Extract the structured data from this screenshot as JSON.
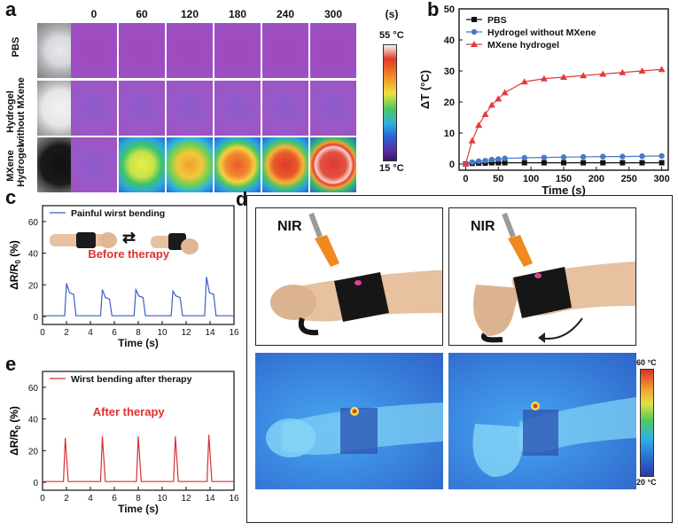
{
  "panels": {
    "a": "a",
    "b": "b",
    "c": "c",
    "d": "d",
    "e": "e"
  },
  "panel_a": {
    "time_unit": "(s)",
    "times": [
      "0",
      "60",
      "120",
      "180",
      "240",
      "300"
    ],
    "rows": [
      "PBS",
      "Hydrogel without MXene",
      "MXene Hydrogel"
    ],
    "colorbar_max": "55 °C",
    "colorbar_min": "15 °C"
  },
  "panel_d": {
    "nir_left": "NIR",
    "nir_right": "NIR",
    "colorbar_max": "60 °C",
    "colorbar_min": "20 °C"
  },
  "colors": {
    "pbs": "#111111",
    "hydrogel": "#4a78c8",
    "mxene": "#e23b3b",
    "blue_trace": "#3a5ec6",
    "red_trace": "#d63030",
    "therapy_text": "#e0302a"
  },
  "chart_data": [
    {
      "panel": "b",
      "type": "line",
      "xlabel": "Time (s)",
      "ylabel": "ΔT (°C)",
      "xlim": [
        -10,
        310
      ],
      "ylim": [
        -2,
        50
      ],
      "xticks": [
        0,
        50,
        100,
        150,
        200,
        250,
        300
      ],
      "yticks": [
        0,
        10,
        20,
        30,
        40,
        50
      ],
      "legend_position": "top-left",
      "series": [
        {
          "name": "PBS",
          "marker": "square",
          "color": "#111111",
          "x": [
            0,
            10,
            20,
            30,
            40,
            50,
            60,
            90,
            120,
            150,
            180,
            210,
            240,
            270,
            300
          ],
          "y": [
            0,
            0.2,
            0.3,
            0.3,
            0.4,
            0.4,
            0.4,
            0.4,
            0.4,
            0.4,
            0.4,
            0.4,
            0.4,
            0.4,
            0.4
          ]
        },
        {
          "name": "Hydrogel without MXene",
          "marker": "circle",
          "color": "#4a78c8",
          "x": [
            0,
            10,
            20,
            30,
            40,
            50,
            60,
            90,
            120,
            150,
            180,
            210,
            240,
            270,
            300
          ],
          "y": [
            0,
            0.6,
            0.9,
            1.1,
            1.4,
            1.6,
            1.8,
            2.0,
            2.1,
            2.2,
            2.3,
            2.4,
            2.4,
            2.5,
            2.6
          ]
        },
        {
          "name": "MXene hydrogel",
          "marker": "triangle",
          "color": "#e23b3b",
          "x": [
            0,
            10,
            20,
            30,
            40,
            50,
            60,
            90,
            120,
            150,
            180,
            210,
            240,
            270,
            300
          ],
          "y": [
            0,
            7.5,
            12.5,
            16,
            19,
            21,
            23,
            26.5,
            27.5,
            28,
            28.5,
            29,
            29.5,
            30,
            30.5
          ]
        }
      ]
    },
    {
      "panel": "c",
      "type": "line",
      "legend": "Painful wirst bending",
      "annotation": "Before therapy",
      "xlabel": "Time (s)",
      "ylabel": "ΔR/R",
      "ylabel_sub": "0",
      "ylabel_unit": " (%)",
      "xlim": [
        0,
        16
      ],
      "ylim": [
        -5,
        70
      ],
      "xticks": [
        0,
        2,
        4,
        6,
        8,
        10,
        12,
        14,
        16
      ],
      "yticks": [
        0,
        20,
        40,
        60
      ],
      "peaks": [
        2,
        5,
        7.8,
        10.9,
        13.7
      ],
      "peak_values": [
        21,
        17,
        17,
        16,
        25
      ],
      "shoulder_values": [
        15,
        12,
        13,
        13,
        15
      ]
    },
    {
      "panel": "e",
      "type": "line",
      "legend": "Wirst bending after therapy",
      "annotation": "After therapy",
      "xlabel": "Time (s)",
      "ylabel": "ΔR/R",
      "ylabel_sub": "0",
      "ylabel_unit": " (%)",
      "xlim": [
        0,
        16
      ],
      "ylim": [
        -5,
        70
      ],
      "xticks": [
        0,
        2,
        4,
        6,
        8,
        10,
        12,
        14,
        16
      ],
      "yticks": [
        0,
        20,
        40,
        60
      ],
      "peaks": [
        1.9,
        5,
        8,
        11.1,
        13.9
      ],
      "peak_values": [
        28,
        29,
        29,
        29,
        30
      ]
    }
  ]
}
